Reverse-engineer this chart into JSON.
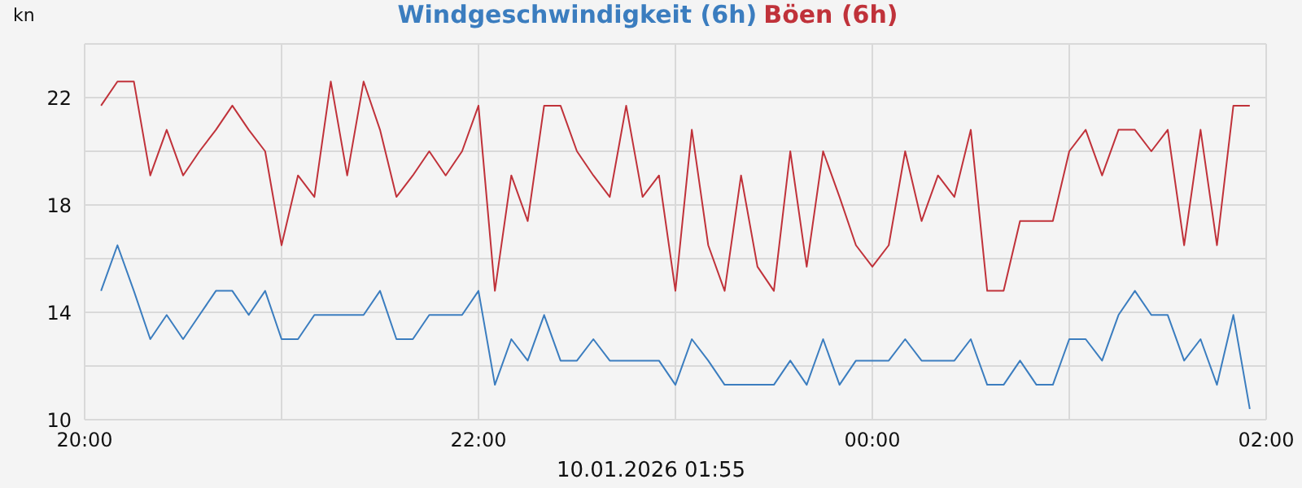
{
  "chart_data": {
    "type": "line",
    "xlabel": "10.01.2026 01:55",
    "ylabel": "kn",
    "x": [
      "2026-01-09T20:05",
      "2026-01-09T20:10",
      "2026-01-09T20:15",
      "2026-01-09T20:20",
      "2026-01-09T20:25",
      "2026-01-09T20:30",
      "2026-01-09T20:35",
      "2026-01-09T20:40",
      "2026-01-09T20:45",
      "2026-01-09T20:50",
      "2026-01-09T20:55",
      "2026-01-09T21:00",
      "2026-01-09T21:05",
      "2026-01-09T21:10",
      "2026-01-09T21:15",
      "2026-01-09T21:20",
      "2026-01-09T21:25",
      "2026-01-09T21:30",
      "2026-01-09T21:35",
      "2026-01-09T21:40",
      "2026-01-09T21:45",
      "2026-01-09T21:50",
      "2026-01-09T21:55",
      "2026-01-09T22:00",
      "2026-01-09T22:05",
      "2026-01-09T22:10",
      "2026-01-09T22:15",
      "2026-01-09T22:20",
      "2026-01-09T22:25",
      "2026-01-09T22:30",
      "2026-01-09T22:35",
      "2026-01-09T22:40",
      "2026-01-09T22:45",
      "2026-01-09T22:50",
      "2026-01-09T22:55",
      "2026-01-09T23:00",
      "2026-01-09T23:05",
      "2026-01-09T23:10",
      "2026-01-09T23:15",
      "2026-01-09T23:20",
      "2026-01-09T23:25",
      "2026-01-09T23:30",
      "2026-01-09T23:35",
      "2026-01-09T23:40",
      "2026-01-09T23:45",
      "2026-01-09T23:50",
      "2026-01-09T23:55",
      "2026-01-10T00:00",
      "2026-01-10T00:05",
      "2026-01-10T00:10",
      "2026-01-10T00:15",
      "2026-01-10T00:20",
      "2026-01-10T00:25",
      "2026-01-10T00:30",
      "2026-01-10T00:35",
      "2026-01-10T00:40",
      "2026-01-10T00:45",
      "2026-01-10T00:50",
      "2026-01-10T00:55",
      "2026-01-10T01:00",
      "2026-01-10T01:05",
      "2026-01-10T01:10",
      "2026-01-10T01:15",
      "2026-01-10T01:20",
      "2026-01-10T01:25",
      "2026-01-10T01:30",
      "2026-01-10T01:35",
      "2026-01-10T01:40",
      "2026-01-10T01:45",
      "2026-01-10T01:50",
      "2026-01-10T01:55"
    ],
    "series": [
      {
        "name": "Windgeschwindigkeit (6h)",
        "color": "#3b7dbf",
        "values": [
          14.8,
          16.5,
          14.8,
          13.0,
          13.9,
          13.0,
          13.9,
          14.8,
          14.8,
          13.9,
          14.8,
          13.0,
          13.0,
          13.9,
          13.9,
          13.9,
          13.9,
          14.8,
          13.0,
          13.0,
          13.9,
          13.9,
          13.9,
          14.8,
          11.3,
          13.0,
          12.2,
          13.9,
          12.2,
          12.2,
          13.0,
          12.2,
          12.2,
          12.2,
          12.2,
          11.3,
          13.0,
          12.2,
          11.3,
          11.3,
          11.3,
          11.3,
          12.2,
          11.3,
          13.0,
          11.3,
          12.2,
          12.2,
          12.2,
          13.0,
          12.2,
          12.2,
          12.2,
          13.0,
          11.3,
          11.3,
          12.2,
          11.3,
          11.3,
          13.0,
          13.0,
          12.2,
          13.9,
          14.8,
          13.9,
          13.9,
          12.2,
          13.0,
          11.3,
          13.9,
          10.4
        ]
      },
      {
        "name": "Böen (6h)",
        "color": "#c0323a",
        "values": [
          21.7,
          22.6,
          22.6,
          19.1,
          20.8,
          19.1,
          20.0,
          20.8,
          21.7,
          20.8,
          20.0,
          16.5,
          19.1,
          18.3,
          22.6,
          19.1,
          22.6,
          20.8,
          18.3,
          19.1,
          20.0,
          19.1,
          20.0,
          21.7,
          14.8,
          19.1,
          17.4,
          21.7,
          21.7,
          20.0,
          19.1,
          18.3,
          21.7,
          18.3,
          19.1,
          14.8,
          20.8,
          16.5,
          14.8,
          19.1,
          15.7,
          14.8,
          20.0,
          15.7,
          20.0,
          18.3,
          16.5,
          15.7,
          16.5,
          20.0,
          17.4,
          19.1,
          18.3,
          20.8,
          14.8,
          14.8,
          17.4,
          17.4,
          17.4,
          20.0,
          20.8,
          19.1,
          20.8,
          20.8,
          20.0,
          20.8,
          16.5,
          20.8,
          16.5,
          21.7,
          21.7
        ]
      }
    ],
    "xlim": [
      "2026-01-09T20:00",
      "2026-01-10T02:00"
    ],
    "xticks": [
      {
        "value": "2026-01-09T20:00",
        "label": "20:00"
      },
      {
        "value": "2026-01-09T21:00",
        "label": null
      },
      {
        "value": "2026-01-09T22:00",
        "label": "22:00"
      },
      {
        "value": "2026-01-09T23:00",
        "label": null
      },
      {
        "value": "2026-01-10T00:00",
        "label": "00:00"
      },
      {
        "value": "2026-01-10T01:00",
        "label": null
      },
      {
        "value": "2026-01-10T02:00",
        "label": "02:00"
      }
    ],
    "ylim": [
      10,
      24
    ],
    "yticks": [
      10,
      {
        "value": 12,
        "label": null
      },
      14,
      {
        "value": 16,
        "label": null
      },
      18,
      {
        "value": 20,
        "label": null
      },
      22,
      {
        "value": 24,
        "label": null
      }
    ],
    "grid": true,
    "legend": "top",
    "marker": "none",
    "line_style": "solid"
  }
}
